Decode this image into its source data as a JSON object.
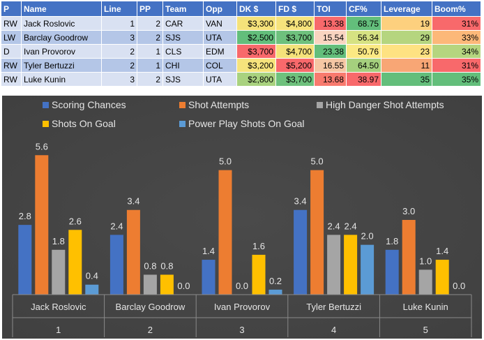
{
  "table": {
    "headers": [
      "P",
      "Name",
      "Line",
      "PP",
      "Team",
      "Opp",
      "DK $",
      "FD $",
      "TOI",
      "CF%",
      "Leverage",
      "Boom%"
    ],
    "rows": [
      {
        "pos": "RW",
        "name": "Jack Roslovic",
        "line": "1",
        "pp": "2",
        "team": "CAR",
        "opp": "VAN",
        "dk": "$3,300",
        "fd": "$4,800",
        "toi": "13.38",
        "cf": "68.75",
        "lev": "19",
        "boom": "31%"
      },
      {
        "pos": "LW",
        "name": "Barclay Goodrow",
        "line": "3",
        "pp": "2",
        "team": "SJS",
        "opp": "UTA",
        "dk": "$2,500",
        "fd": "$3,700",
        "toi": "15.54",
        "cf": "56.34",
        "lev": "29",
        "boom": "33%"
      },
      {
        "pos": "D",
        "name": "Ivan Provorov",
        "line": "2",
        "pp": "1",
        "team": "CLS",
        "opp": "EDM",
        "dk": "$3,700",
        "fd": "$4,700",
        "toi": "23.38",
        "cf": "50.76",
        "lev": "23",
        "boom": "34%"
      },
      {
        "pos": "RW",
        "name": "Tyler Bertuzzi",
        "line": "2",
        "pp": "1",
        "team": "CHI",
        "opp": "COL",
        "dk": "$3,200",
        "fd": "$5,200",
        "toi": "16.55",
        "cf": "64.50",
        "lev": "11",
        "boom": "31%"
      },
      {
        "pos": "RW",
        "name": "Luke Kunin",
        "line": "3",
        "pp": "2",
        "team": "SJS",
        "opp": "UTA",
        "dk": "$2,800",
        "fd": "$3,700",
        "toi": "13.68",
        "cf": "38.97",
        "lev": "35",
        "boom": "35%"
      }
    ],
    "cell_colors": {
      "dk": [
        "#f5e27a",
        "#63be7b",
        "#f8696b",
        "#f6e37c",
        "#a9d27f"
      ],
      "fd": [
        "#f6e37c",
        "#6ec17d",
        "#f5e27a",
        "#f8696b",
        "#6ec17d"
      ],
      "toi": [
        "#f8696b",
        "#f9d4c0",
        "#63be7b",
        "#f5c7a4",
        "#f87a6e"
      ],
      "cf": [
        "#63be7b",
        "#d6e282",
        "#fbe983",
        "#a5d07e",
        "#f8696b"
      ],
      "lev": [
        "#fdd07e",
        "#b5d57f",
        "#fee282",
        "#f8a675",
        "#63be7b"
      ],
      "boom": [
        "#f8696b",
        "#fcb879",
        "#b5d57f",
        "#f8696b",
        "#63be7b"
      ]
    }
  },
  "chart_data": {
    "type": "bar",
    "background": "#404040",
    "categories": [
      {
        "name": "Jack Roslovic",
        "index": "1"
      },
      {
        "name": "Barclay Goodrow",
        "index": "2"
      },
      {
        "name": "Ivan Provorov",
        "index": "3"
      },
      {
        "name": "Tyler Bertuzzi",
        "index": "4"
      },
      {
        "name": "Luke Kunin",
        "index": "5"
      }
    ],
    "series": [
      {
        "name": "Scoring Chances",
        "color": "#4472c4",
        "values": [
          2.8,
          2.4,
          1.4,
          3.4,
          1.8
        ],
        "labels": [
          "2.8",
          "2.4",
          "1.4",
          "3.4",
          "1.8"
        ]
      },
      {
        "name": "Shot Attempts",
        "color": "#ed7d31",
        "values": [
          5.6,
          3.4,
          5.0,
          5.0,
          3.0
        ],
        "labels": [
          "5.6",
          "3.4",
          "5.0",
          "5.0",
          "3.0"
        ]
      },
      {
        "name": "High Danger Shot Attempts",
        "color": "#a5a5a5",
        "values": [
          1.8,
          0.8,
          0.0,
          2.4,
          1.0
        ],
        "labels": [
          "1.8",
          "0.8",
          "0.0",
          "2.4",
          "1.0"
        ]
      },
      {
        "name": "Shots On Goal",
        "color": "#ffc000",
        "values": [
          2.6,
          0.8,
          1.6,
          2.4,
          1.4
        ],
        "labels": [
          "2.6",
          "0.8",
          "1.6",
          "2.4",
          "1.4"
        ]
      },
      {
        "name": "Power Play Shots On Goal",
        "color": "#5b9bd5",
        "values": [
          0.4,
          0.0,
          0.2,
          2.0,
          0.0
        ],
        "labels": [
          "0.4",
          "0.0",
          "0.2",
          "2.0",
          "0.0"
        ]
      }
    ],
    "ylim": [
      0,
      6
    ],
    "grid": false,
    "legend": "top"
  }
}
